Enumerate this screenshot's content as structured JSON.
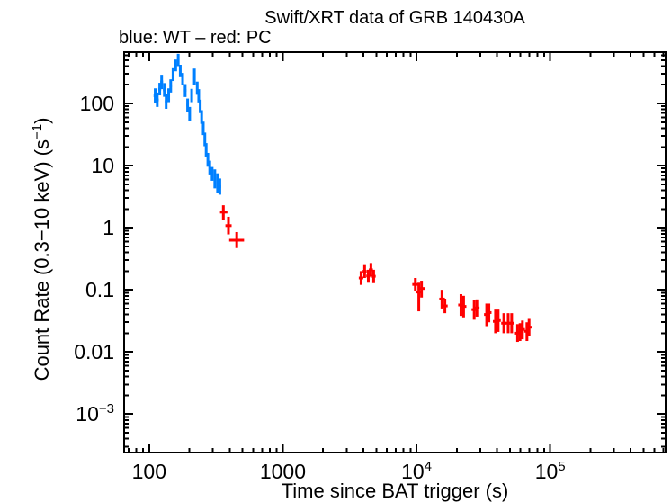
{
  "window": {
    "title": "Swift/XRT data of GRB 140430A",
    "subtitle": "blue: WT – red: PC"
  },
  "chart_data": {
    "type": "scatter",
    "title": "Swift/XRT data of GRB 140430A",
    "subtitle": "blue: WT – red: PC",
    "xlabel": "Time since BAT trigger (s)",
    "ylabel_parts": {
      "pre": "Count Rate (0.3−10 keV) (s",
      "sup": "−1",
      "post": ")"
    },
    "x_scale": "log",
    "y_scale": "log",
    "xlim": [
      65,
      730000
    ],
    "ylim": [
      0.00024,
      670
    ],
    "grid": false,
    "legend_position": "above-top-left",
    "x_axis": {
      "ticks": [
        {
          "text": "100",
          "value": 100
        },
        {
          "text": "1000",
          "value": 1000
        },
        {
          "text": "10",
          "sup": "4",
          "value": 10000
        },
        {
          "text": "10",
          "sup": "5",
          "value": 100000
        }
      ]
    },
    "y_axis": {
      "ticks": [
        {
          "text": "100",
          "value": 100
        },
        {
          "text": "10",
          "value": 10
        },
        {
          "text": "1",
          "value": 1
        },
        {
          "text": "0.1",
          "value": 0.1
        },
        {
          "text": "0.01",
          "value": 0.01
        },
        {
          "text": "10",
          "sup": "−3",
          "value": 0.001
        }
      ]
    },
    "series": [
      {
        "name": "WT",
        "color": "#0080ff",
        "points_format": [
          "t",
          "rate",
          "rate_lo",
          "rate_hi",
          "t_lo",
          "t_hi"
        ],
        "points": [
          [
            111,
            133,
            100,
            175,
            108,
            114
          ],
          [
            115,
            114,
            88,
            150,
            112,
            118
          ],
          [
            120,
            170,
            135,
            215,
            117,
            123
          ],
          [
            124,
            223,
            170,
            290,
            121,
            127
          ],
          [
            130,
            165,
            128,
            213,
            127,
            133
          ],
          [
            134,
            107,
            82,
            140,
            131,
            137
          ],
          [
            140,
            135,
            105,
            175,
            137,
            143
          ],
          [
            145,
            192,
            150,
            245,
            142,
            148
          ],
          [
            151,
            292,
            230,
            370,
            148,
            154
          ],
          [
            158,
            408,
            330,
            510,
            155,
            161
          ],
          [
            165,
            498,
            400,
            630,
            162,
            168
          ],
          [
            171,
            334,
            265,
            420,
            168,
            174
          ],
          [
            178,
            247,
            196,
            310,
            175,
            181
          ],
          [
            186,
            162,
            127,
            205,
            182,
            190
          ],
          [
            194,
            94,
            73,
            120,
            190,
            198
          ],
          [
            201,
            69,
            53,
            88,
            198,
            204
          ],
          [
            208,
            135,
            105,
            172,
            205,
            211
          ],
          [
            218,
            255,
            200,
            365,
            214,
            222
          ],
          [
            229,
            177,
            138,
            225,
            225,
            233
          ],
          [
            235,
            134,
            104,
            170,
            232,
            238
          ],
          [
            241,
            90,
            70,
            115,
            238,
            244
          ],
          [
            247,
            61,
            47,
            78,
            244,
            250
          ],
          [
            254,
            40,
            31,
            51,
            251,
            257
          ],
          [
            261,
            26.5,
            20.5,
            34,
            258,
            264
          ],
          [
            267,
            18,
            14,
            23,
            264,
            270
          ],
          [
            275,
            12.4,
            9.6,
            16,
            271,
            279
          ],
          [
            284,
            9.3,
            7.2,
            12,
            280,
            288
          ],
          [
            296,
            7.4,
            5.7,
            9.5,
            291,
            301
          ],
          [
            310,
            6.1,
            4.3,
            8.7,
            304,
            316
          ],
          [
            325,
            5.2,
            3.6,
            7.5,
            318,
            332
          ],
          [
            338,
            4.6,
            3.4,
            6.2,
            331,
            345
          ]
        ]
      },
      {
        "name": "PC",
        "color": "#ff0000",
        "points_format": [
          "t",
          "rate",
          "rate_lo",
          "rate_hi",
          "t_lo",
          "t_hi"
        ],
        "points": [
          [
            359,
            1.78,
            1.35,
            2.3,
            339,
            385
          ],
          [
            392,
            1.08,
            0.78,
            1.5,
            372,
            414
          ],
          [
            452,
            0.63,
            0.47,
            0.85,
            397,
            513
          ],
          [
            3850,
            0.155,
            0.12,
            0.2,
            3700,
            4000
          ],
          [
            4090,
            0.198,
            0.155,
            0.25,
            3950,
            4240
          ],
          [
            4360,
            0.167,
            0.13,
            0.21,
            4210,
            4510
          ],
          [
            4560,
            0.21,
            0.165,
            0.27,
            4400,
            4720
          ],
          [
            4780,
            0.165,
            0.128,
            0.21,
            4620,
            4950
          ],
          [
            9800,
            0.122,
            0.095,
            0.155,
            9300,
            10300
          ],
          [
            10400,
            0.092,
            0.045,
            0.13,
            9900,
            11000
          ],
          [
            10900,
            0.105,
            0.075,
            0.14,
            10400,
            11500
          ],
          [
            15500,
            0.071,
            0.05,
            0.1,
            14800,
            16300
          ],
          [
            16300,
            0.055,
            0.042,
            0.072,
            15600,
            17100
          ],
          [
            21500,
            0.057,
            0.038,
            0.085,
            20500,
            22600
          ],
          [
            22500,
            0.054,
            0.036,
            0.08,
            21500,
            23600
          ],
          [
            27000,
            0.048,
            0.033,
            0.068,
            25800,
            28300
          ],
          [
            28300,
            0.051,
            0.037,
            0.07,
            27100,
            29600
          ],
          [
            33500,
            0.04,
            0.026,
            0.06,
            32000,
            35100
          ],
          [
            34800,
            0.043,
            0.03,
            0.06,
            33300,
            36400
          ],
          [
            39000,
            0.031,
            0.02,
            0.048,
            37300,
            40800
          ],
          [
            40800,
            0.032,
            0.021,
            0.048,
            39000,
            42700
          ],
          [
            45000,
            0.029,
            0.02,
            0.042,
            43000,
            47100
          ],
          [
            48500,
            0.029,
            0.02,
            0.042,
            46400,
            50700
          ],
          [
            51500,
            0.029,
            0.02,
            0.042,
            49200,
            53800
          ],
          [
            57000,
            0.02,
            0.0145,
            0.028,
            54500,
            59600
          ],
          [
            59500,
            0.021,
            0.015,
            0.029,
            56900,
            62200
          ],
          [
            62000,
            0.023,
            0.016,
            0.032,
            59400,
            64700
          ],
          [
            67000,
            0.0215,
            0.015,
            0.03,
            64000,
            70000
          ],
          [
            69500,
            0.025,
            0.018,
            0.034,
            66400,
            72700
          ]
        ]
      }
    ]
  }
}
